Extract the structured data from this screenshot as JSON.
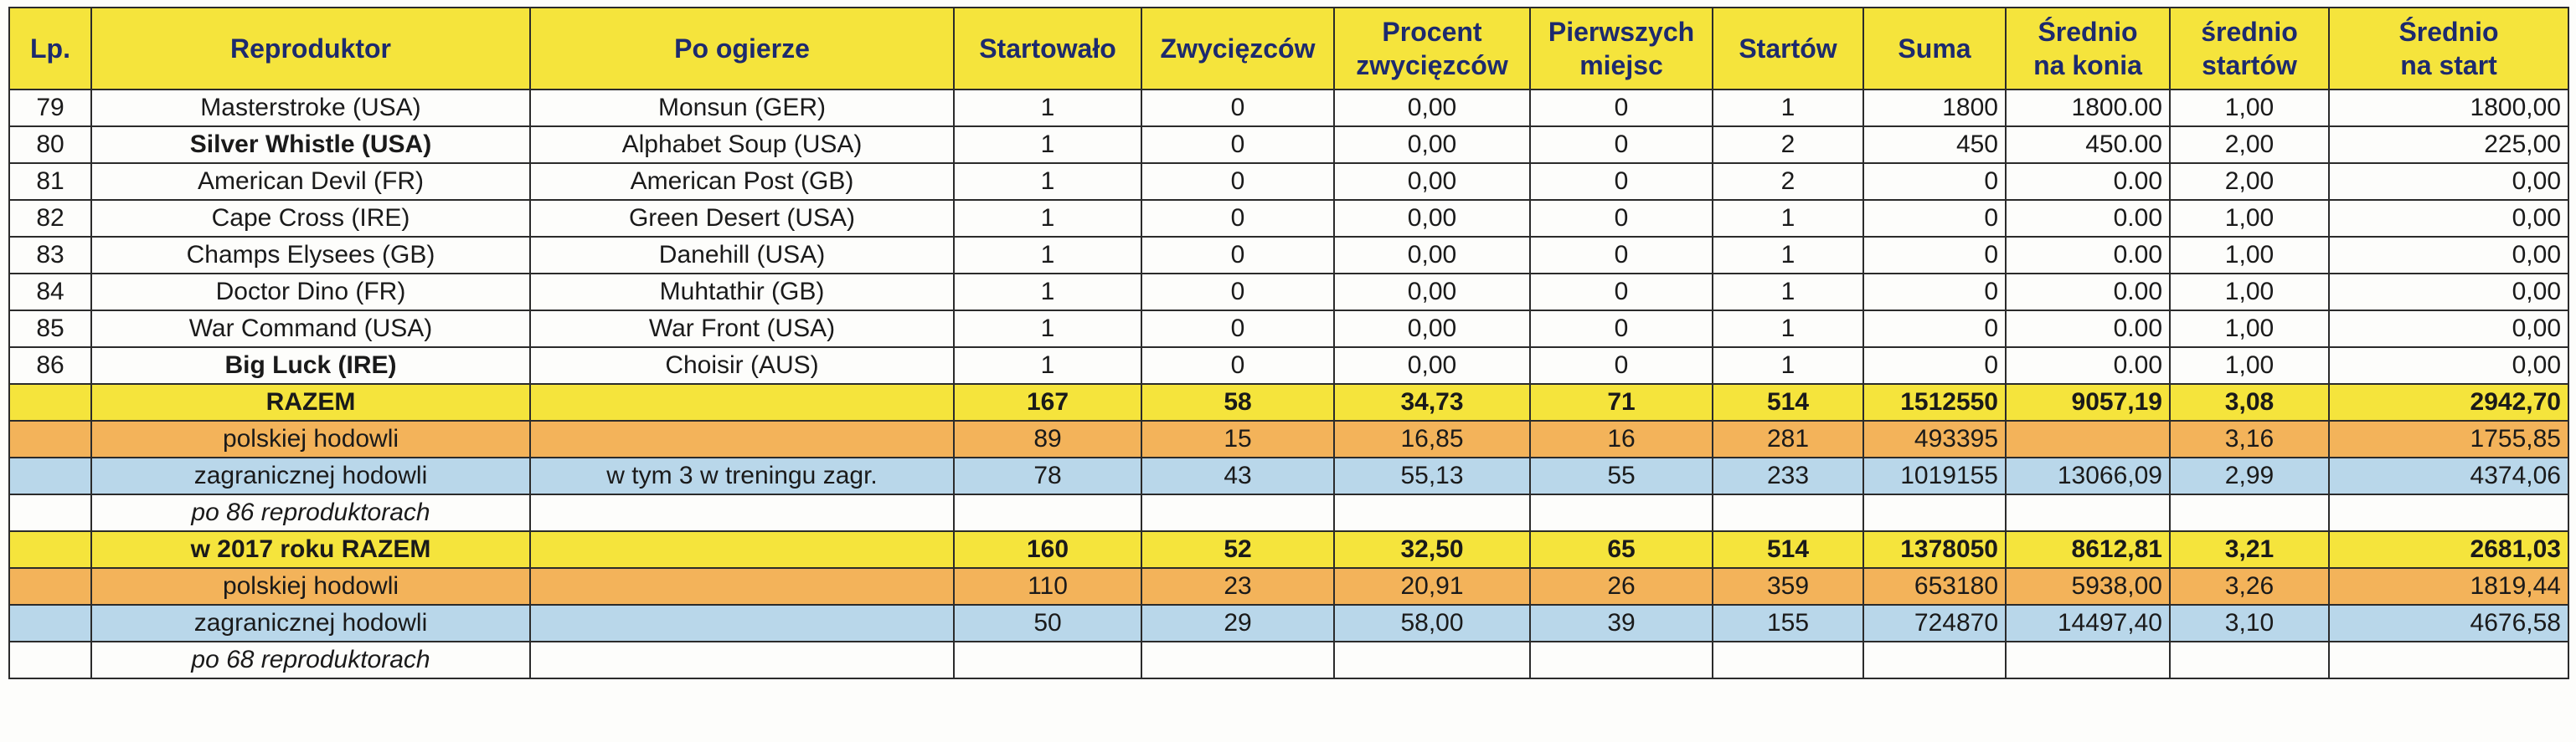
{
  "table": {
    "headers": {
      "lp": "Lp.",
      "reproduktor": "Reproduktor",
      "po_ogierze": "Po ogierze",
      "startowalo": "Startowało",
      "zwyciezcow": "Zwycięzców",
      "procent_1": "Procent",
      "procent_2": "zwycięzców",
      "pierwszych_1": "Pierwszych",
      "pierwszych_2": "miejsc",
      "startow": "Startów",
      "suma": "Suma",
      "srednio_konia_1": "Średnio",
      "srednio_konia_2": "na konia",
      "srednio_startow_1": "średnio",
      "srednio_startow_2": "startów",
      "srednio_start_1": "Średnio",
      "srednio_start_2": "na start"
    },
    "rows": [
      {
        "lp": "79",
        "reproduktor": "Masterstroke (USA)",
        "bold": false,
        "po_ogierze": "Monsun (GER)",
        "startowalo": "1",
        "zwyciezcow": "0",
        "procent": "0,00",
        "pierwszych": "0",
        "startow": "1",
        "suma": "1800",
        "srednio_konia": "1800.00",
        "srednio_startow": "1,00",
        "srednio_start": "1800,00"
      },
      {
        "lp": "80",
        "reproduktor": "Silver Whistle (USA)",
        "bold": true,
        "po_ogierze": "Alphabet Soup (USA)",
        "startowalo": "1",
        "zwyciezcow": "0",
        "procent": "0,00",
        "pierwszych": "0",
        "startow": "2",
        "suma": "450",
        "srednio_konia": "450.00",
        "srednio_startow": "2,00",
        "srednio_start": "225,00"
      },
      {
        "lp": "81",
        "reproduktor": "American Devil (FR)",
        "bold": false,
        "po_ogierze": "American Post (GB)",
        "startowalo": "1",
        "zwyciezcow": "0",
        "procent": "0,00",
        "pierwszych": "0",
        "startow": "2",
        "suma": "0",
        "srednio_konia": "0.00",
        "srednio_startow": "2,00",
        "srednio_start": "0,00"
      },
      {
        "lp": "82",
        "reproduktor": "Cape Cross (IRE)",
        "bold": false,
        "po_ogierze": "Green Desert (USA)",
        "startowalo": "1",
        "zwyciezcow": "0",
        "procent": "0,00",
        "pierwszych": "0",
        "startow": "1",
        "suma": "0",
        "srednio_konia": "0.00",
        "srednio_startow": "1,00",
        "srednio_start": "0,00"
      },
      {
        "lp": "83",
        "reproduktor": "Champs Elysees (GB)",
        "bold": false,
        "po_ogierze": "Danehill (USA)",
        "startowalo": "1",
        "zwyciezcow": "0",
        "procent": "0,00",
        "pierwszych": "0",
        "startow": "1",
        "suma": "0",
        "srednio_konia": "0.00",
        "srednio_startow": "1,00",
        "srednio_start": "0,00"
      },
      {
        "lp": "84",
        "reproduktor": "Doctor Dino (FR)",
        "bold": false,
        "po_ogierze": "Muhtathir (GB)",
        "startowalo": "1",
        "zwyciezcow": "0",
        "procent": "0,00",
        "pierwszych": "0",
        "startow": "1",
        "suma": "0",
        "srednio_konia": "0.00",
        "srednio_startow": "1,00",
        "srednio_start": "0,00"
      },
      {
        "lp": "85",
        "reproduktor": "War Command (USA)",
        "bold": false,
        "po_ogierze": "War Front (USA)",
        "startowalo": "1",
        "zwyciezcow": "0",
        "procent": "0,00",
        "pierwszych": "0",
        "startow": "1",
        "suma": "0",
        "srednio_konia": "0.00",
        "srednio_startow": "1,00",
        "srednio_start": "0,00"
      },
      {
        "lp": "86",
        "reproduktor": "Big Luck (IRE)",
        "bold": true,
        "po_ogierze": "Choisir (AUS)",
        "startowalo": "1",
        "zwyciezcow": "0",
        "procent": "0,00",
        "pierwszych": "0",
        "startow": "1",
        "suma": "0",
        "srednio_konia": "0.00",
        "srednio_startow": "1,00",
        "srednio_start": "0,00"
      }
    ],
    "summary_current": {
      "total": {
        "label": "RAZEM",
        "startowalo": "167",
        "zwyciezcow": "58",
        "procent": "34,73",
        "pierwszych": "71",
        "startow": "514",
        "suma": "1512550",
        "srednio_konia": "9057,19",
        "srednio_startow": "3,08",
        "srednio_start": "2942,70"
      },
      "polish": {
        "label": "polskiej hodowli",
        "startowalo": "89",
        "zwyciezcow": "15",
        "procent": "16,85",
        "pierwszych": "16",
        "startow": "281",
        "suma": "493395",
        "srednio_konia": "",
        "srednio_startow": "3,16",
        "srednio_start": "1755,85"
      },
      "foreign": {
        "label": "zagranicznej hodowli",
        "note": "w tym 3 w treningu zagr.",
        "startowalo": "78",
        "zwyciezcow": "43",
        "procent": "55,13",
        "pierwszych": "55",
        "startow": "233",
        "suma": "1019155",
        "srednio_konia": "13066,09",
        "srednio_startow": "2,99",
        "srednio_start": "4374,06"
      },
      "footnote": "po 86 reproduktorach"
    },
    "summary_2017": {
      "total": {
        "label": "w 2017 roku RAZEM",
        "startowalo": "160",
        "zwyciezcow": "52",
        "procent": "32,50",
        "pierwszych": "65",
        "startow": "514",
        "suma": "1378050",
        "srednio_konia": "8612,81",
        "srednio_startow": "3,21",
        "srednio_start": "2681,03"
      },
      "polish": {
        "label": "polskiej hodowli",
        "startowalo": "110",
        "zwyciezcow": "23",
        "procent": "20,91",
        "pierwszych": "26",
        "startow": "359",
        "suma": "653180",
        "srednio_konia": "5938,00",
        "srednio_startow": "3,26",
        "srednio_start": "1819,44"
      },
      "foreign": {
        "label": "zagranicznej hodowli",
        "startowalo": "50",
        "zwyciezcow": "29",
        "procent": "58,00",
        "pierwszych": "39",
        "startow": "155",
        "suma": "724870",
        "srednio_konia": "14497,40",
        "srednio_startow": "3,10",
        "srednio_start": "4676,58"
      },
      "footnote": "po 68 reproduktorach"
    },
    "colors": {
      "header_yellow": "#f5e43c",
      "header_text": "#1d2a6e",
      "polish_orange": "#f3b35a",
      "foreign_blue": "#b9d7ea"
    }
  }
}
